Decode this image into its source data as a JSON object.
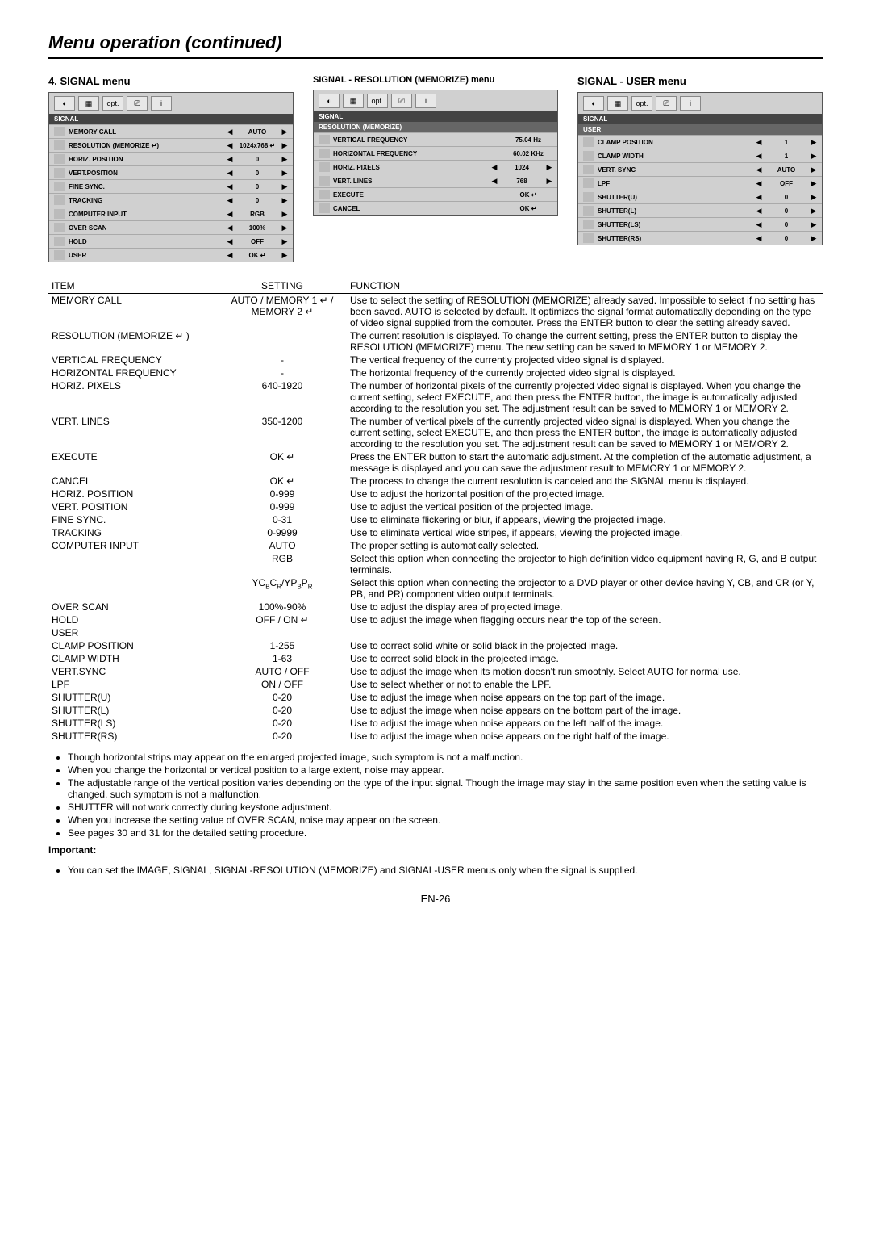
{
  "page": {
    "title": "Menu operation (continued)",
    "pagenum": "EN-26"
  },
  "col1": {
    "heading": "4. SIGNAL menu",
    "osd": {
      "label": "SIGNAL",
      "rows": [
        {
          "label": "MEMORY CALL",
          "val": "AUTO"
        },
        {
          "label": "RESOLUTION (MEMORIZE ↵)",
          "val": "1024x768 ↵"
        },
        {
          "label": "HORIZ. POSITION",
          "val": "0"
        },
        {
          "label": "VERT.POSITION",
          "val": "0"
        },
        {
          "label": "FINE SYNC.",
          "val": "0"
        },
        {
          "label": "TRACKING",
          "val": "0"
        },
        {
          "label": "COMPUTER INPUT",
          "val": "RGB"
        },
        {
          "label": "OVER SCAN",
          "val": "100%"
        },
        {
          "label": "HOLD",
          "val": "OFF"
        },
        {
          "label": "USER",
          "val": "OK ↵"
        }
      ]
    }
  },
  "col2": {
    "heading": "SIGNAL - RESOLUTION (MEMORIZE) menu",
    "osd": {
      "label": "SIGNAL",
      "sub": "RESOLUTION (MEMORIZE)",
      "rows": [
        {
          "label": "VERTICAL FREQUENCY",
          "val": "75.04 Hz",
          "noarrows": true
        },
        {
          "label": "HORIZONTAL FREQUENCY",
          "val": "60.02 KHz",
          "noarrows": true
        },
        {
          "label": "HORIZ. PIXELS",
          "val": "1024"
        },
        {
          "label": "VERT. LINES",
          "val": "768"
        },
        {
          "label": "EXECUTE",
          "val": "OK ↵",
          "noarrows": true
        },
        {
          "label": "CANCEL",
          "val": "OK ↵",
          "noarrows": true
        }
      ]
    }
  },
  "col3": {
    "heading": "SIGNAL - USER menu",
    "osd": {
      "label": "SIGNAL",
      "sub": "USER",
      "rows": [
        {
          "label": "CLAMP POSITION",
          "val": "1"
        },
        {
          "label": "CLAMP WIDTH",
          "val": "1"
        },
        {
          "label": "VERT. SYNC",
          "val": "AUTO"
        },
        {
          "label": "LPF",
          "val": "OFF"
        },
        {
          "label": "SHUTTER(U)",
          "val": "0"
        },
        {
          "label": "SHUTTER(L)",
          "val": "0"
        },
        {
          "label": "SHUTTER(LS)",
          "val": "0"
        },
        {
          "label": "SHUTTER(RS)",
          "val": "0"
        }
      ]
    }
  },
  "table": {
    "headers": [
      "ITEM",
      "SETTING",
      "FUNCTION"
    ],
    "rows": [
      {
        "item": "MEMORY CALL",
        "setting": "AUTO / MEMORY 1 ↵ /\nMEMORY 2 ↵",
        "func": "Use to select the setting of RESOLUTION (MEMORIZE) already saved. Impossible to select if no setting has been saved. AUTO is selected by default. It optimizes the signal format automatically depending on the type of video signal supplied from the computer. Press the ENTER button to clear the setting already saved."
      },
      {
        "item": "RESOLUTION (MEMORIZE ↵ )",
        "setting": "",
        "func": "The current resolution is displayed. To change the current setting, press the ENTER button to display the RESOLUTION (MEMORIZE) menu. The new setting can be saved to MEMORY 1 or MEMORY 2."
      },
      {
        "item": "VERTICAL FREQUENCY",
        "indent": 1,
        "setting": "-",
        "func": "The vertical frequency of the currently projected video signal is displayed."
      },
      {
        "item": "HORIZONTAL FREQUENCY",
        "indent": 1,
        "setting": "-",
        "func": "The horizontal frequency of the currently projected video signal is displayed."
      },
      {
        "item": "HORIZ. PIXELS",
        "indent": 1,
        "setting": "640-1920",
        "func": "The number of horizontal pixels of the currently projected video signal is displayed. When you change the current setting, select EXECUTE, and then press the ENTER button, the image is automatically adjusted according to the resolution you set. The adjustment result can be saved to MEMORY 1 or MEMORY 2."
      },
      {
        "item": "VERT. LINES",
        "indent": 1,
        "setting": "350-1200",
        "func": "The number of vertical pixels of the currently projected video signal is displayed. When you change the current setting, select EXECUTE, and then press the ENTER button, the image is automatically adjusted according to the resolution you set. The adjustment result can be saved to MEMORY 1 or MEMORY 2."
      },
      {
        "item": "EXECUTE",
        "indent": 1,
        "setting": "OK ↵",
        "func": "Press the ENTER button to start the automatic adjustment. At the completion of the automatic adjustment, a message is displayed and you can save the adjustment result to MEMORY 1 or MEMORY 2."
      },
      {
        "item": "CANCEL",
        "indent": 1,
        "setting": "OK ↵",
        "func": "The process to change the current resolution is canceled and the SIGNAL menu is displayed."
      },
      {
        "item": "HORIZ. POSITION",
        "setting": "0-999",
        "func": "Use to adjust the horizontal position of the projected image."
      },
      {
        "item": "VERT. POSITION",
        "setting": "0-999",
        "func": "Use to adjust the vertical position of the projected image."
      },
      {
        "item": "FINE SYNC.",
        "setting": "0-31",
        "func": "Use to eliminate flickering or blur, if appears, viewing the projected image."
      },
      {
        "item": "TRACKING",
        "setting": "0-9999",
        "func": "Use to eliminate vertical wide stripes, if appears, viewing the projected image."
      },
      {
        "item": "COMPUTER INPUT",
        "setting": "AUTO",
        "func": "The proper setting is automatically selected."
      },
      {
        "item": "",
        "setting": "RGB",
        "func": "Select this option when connecting the projector to high definition video equipment having R, G, and B output terminals."
      },
      {
        "item": "",
        "setting": "YCBCR/YPBPR",
        "func": "Select this option when connecting the projector to a DVD player or other device having Y, CB, and CR (or Y, PB, and PR) component video output terminals."
      },
      {
        "item": "OVER SCAN",
        "setting": "100%-90%",
        "func": "Use to adjust the display area of projected image."
      },
      {
        "item": "HOLD",
        "setting": "OFF / ON ↵",
        "func": "Use to adjust the image when flagging occurs near the top of the screen."
      },
      {
        "item": "USER",
        "setting": "",
        "func": ""
      },
      {
        "item": "CLAMP POSITION",
        "indent": 1,
        "setting": "1-255",
        "func": "Use to correct solid white or solid black in the projected image."
      },
      {
        "item": "CLAMP WIDTH",
        "indent": 1,
        "setting": "1-63",
        "func": "Use to correct solid black in the projected image."
      },
      {
        "item": "VERT.SYNC",
        "indent": 1,
        "setting": "AUTO / OFF",
        "func": "Use to adjust the image when its motion doesn't run smoothly. Select AUTO for normal use."
      },
      {
        "item": "LPF",
        "indent": 1,
        "setting": "ON / OFF",
        "func": "Use to select whether or not to enable the LPF."
      },
      {
        "item": "SHUTTER(U)",
        "indent": 1,
        "setting": "0-20",
        "func": "Use to adjust the image when noise appears on the top part of the image."
      },
      {
        "item": "SHUTTER(L)",
        "indent": 1,
        "setting": "0-20",
        "func": "Use to adjust the image when noise appears on the bottom part of the image."
      },
      {
        "item": "SHUTTER(LS)",
        "indent": 1,
        "setting": "0-20",
        "func": "Use to adjust the image when noise appears on the left half of the image."
      },
      {
        "item": "SHUTTER(RS)",
        "indent": 1,
        "setting": "0-20",
        "func": "Use to adjust the image when noise appears on the right half of the image."
      }
    ]
  },
  "notes": [
    "Though horizontal strips may appear on the enlarged projected image, such symptom is not a malfunction.",
    "When you change the horizontal or vertical position to a large extent, noise may appear.",
    "The adjustable range of the vertical position varies depending on the type of the input signal. Though the image may stay in the same position even when the setting value is changed, such symptom is not a malfunction.",
    "SHUTTER will not work correctly during keystone adjustment.",
    "When you increase the setting value of OVER SCAN, noise may appear on the screen.",
    "See pages 30 and 31 for the detailed setting procedure."
  ],
  "important": {
    "label": "Important:",
    "text": "You can set the IMAGE, SIGNAL, SIGNAL-RESOLUTION (MEMORIZE) and SIGNAL-USER menus only when the signal is supplied."
  },
  "tabs": [
    "◐",
    "▦",
    "opt.",
    "⎚",
    "i"
  ]
}
